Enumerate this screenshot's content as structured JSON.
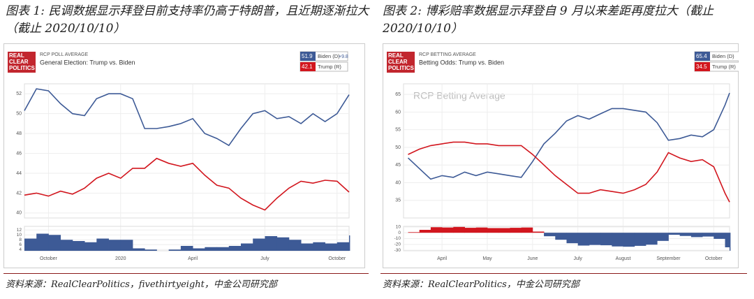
{
  "chart_data": [
    {
      "type": "line",
      "title": "图表 1: 民调数据显示拜登目前支持率仍高于特朗普，且近期逐渐拉大（截止 2020/10/10）",
      "source": "资料来源：RealClearPolitics，fivethirtyeight，中金公司研究部",
      "logo": [
        "REAL",
        "CLEAR",
        "POLITICS"
      ],
      "header": "RCP POLL AVERAGE",
      "subtitle": "General Election: Trump vs. Biden",
      "grid": true,
      "xlim": [
        0,
        27
      ],
      "xticks": [
        {
          "value": 2,
          "label": "October"
        },
        {
          "value": 8,
          "label": "2020"
        },
        {
          "value": 14,
          "label": "April"
        },
        {
          "value": 20,
          "label": "July"
        },
        {
          "value": 26,
          "label": "October"
        }
      ],
      "ylim": [
        39.5,
        53
      ],
      "yticks": [
        40,
        42,
        44,
        46,
        48,
        50,
        52
      ],
      "x": [
        0,
        1,
        2,
        3,
        4,
        5,
        6,
        7,
        8,
        9,
        10,
        11,
        12,
        13,
        14,
        15,
        16,
        17,
        18,
        19,
        20,
        21,
        22,
        23,
        24,
        25,
        26,
        27
      ],
      "series": [
        {
          "name": "Biden (D)",
          "color": "#3d5a96",
          "legend_value": 51.9,
          "legend_change": {
            "value": 9.8,
            "label": "+9.8"
          },
          "values": [
            50.3,
            52.5,
            52.3,
            51,
            50,
            49.8,
            51.5,
            52,
            52,
            51.5,
            48.5,
            48.5,
            48.7,
            49,
            49.5,
            48,
            47.5,
            46.8,
            48.5,
            50,
            50.3,
            49.5,
            49.7,
            49,
            50,
            49.2,
            50,
            51.9
          ]
        },
        {
          "name": "Trump (R)",
          "color": "#d2161e",
          "legend_value": 42.1,
          "values": [
            41.8,
            42,
            41.7,
            42.2,
            41.9,
            42.5,
            43.5,
            44,
            43.5,
            44.5,
            44.5,
            45.5,
            45,
            44.7,
            45,
            43.8,
            42.8,
            42.5,
            41.5,
            40.8,
            40.3,
            41.5,
            42.5,
            43.2,
            43,
            43.3,
            43.2,
            42.1
          ]
        }
      ],
      "spread": {
        "color": "#3d5a96",
        "ylim": [
          3.5,
          13.5
        ],
        "yticks": [
          4,
          6,
          8,
          10,
          12
        ],
        "values": [
          8.5,
          10.5,
          10,
          8,
          7.5,
          7,
          8.5,
          8,
          8,
          4.5,
          4,
          3.5,
          4,
          5.5,
          4.5,
          5,
          5,
          5.5,
          6.5,
          8.5,
          9.5,
          9,
          8,
          6.5,
          7,
          6.5,
          7,
          9.8
        ]
      }
    },
    {
      "type": "line",
      "title": "图表 2: 博彩赔率数据显示拜登自 9 月以来差距再度拉大（截止 2020/10/10）",
      "source": "资料来源：RealClearPolitics，中金公司研究部",
      "logo": [
        "REAL",
        "CLEAR",
        "POLITICS"
      ],
      "header": "RCP BETTING AVERAGE",
      "subtitle": "Betting Odds: Trump vs. Biden",
      "watermark": "RCP Betting Average",
      "grid": true,
      "xlim": [
        -1.7,
        12.7
      ],
      "xticks": [
        {
          "value": 0,
          "label": "April"
        },
        {
          "value": 2,
          "label": "May"
        },
        {
          "value": 4,
          "label": "June"
        },
        {
          "value": 6,
          "label": "July"
        },
        {
          "value": 8,
          "label": "August"
        },
        {
          "value": 10,
          "label": "September"
        },
        {
          "value": 12,
          "label": "October"
        }
      ],
      "ylim": [
        30,
        68
      ],
      "yticks": [
        35,
        40,
        45,
        50,
        55,
        60,
        65
      ],
      "x": [
        -1.5,
        -1,
        -0.5,
        0,
        0.5,
        1,
        1.5,
        2,
        2.5,
        3,
        3.5,
        4,
        4.5,
        5,
        5.5,
        6,
        6.5,
        7,
        7.5,
        8,
        8.5,
        9,
        9.5,
        10,
        10.5,
        11,
        11.5,
        12,
        12.5,
        12.7
      ],
      "series": [
        {
          "name": "Biden (D)",
          "color": "#3d5a96",
          "legend_value": 65.4,
          "values": [
            47,
            44,
            41,
            42,
            41.5,
            43,
            42,
            43,
            42.5,
            42,
            41.5,
            46,
            51,
            54,
            57.5,
            59,
            58,
            59.5,
            61,
            61,
            60.5,
            60,
            57,
            52,
            52.5,
            53.5,
            53,
            55,
            62,
            65.4
          ]
        },
        {
          "name": "Trump (R)",
          "color": "#d2161e",
          "legend_value": 34.5,
          "values": [
            48,
            49.5,
            50.5,
            51,
            51.5,
            51.5,
            51,
            51,
            50.5,
            50.5,
            50.5,
            48,
            45,
            42,
            39.5,
            37,
            37,
            38,
            37.5,
            37,
            38,
            39.5,
            43,
            48.5,
            47,
            46,
            46.5,
            44.5,
            37,
            34.5
          ]
        }
      ],
      "spread": {
        "positive_color": "#d2161e",
        "negative_color": "#3d5a96",
        "ylim": [
          -31,
          11
        ],
        "yticks": [
          10,
          0,
          -10,
          -20,
          -30
        ],
        "values": [
          1,
          5,
          9.5,
          9,
          10,
          8.5,
          9,
          8,
          8,
          8.5,
          9,
          2,
          -6,
          -12,
          -18,
          -22,
          -21,
          -21.5,
          -23.5,
          -24,
          -22.5,
          -20.5,
          -14,
          -3.5,
          -5.5,
          -7.5,
          -6.5,
          -10.5,
          -25,
          -30.9
        ]
      }
    }
  ]
}
